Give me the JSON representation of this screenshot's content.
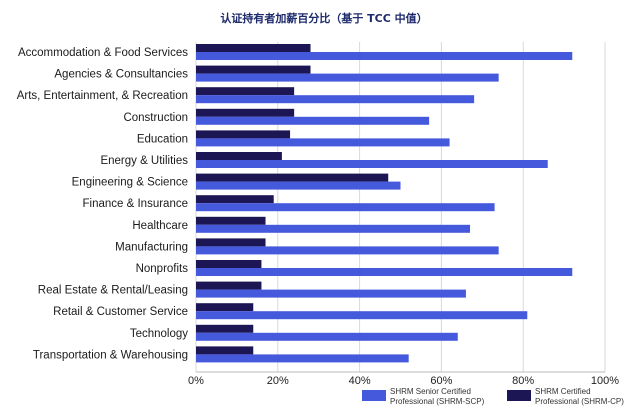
{
  "chart_data": {
    "type": "bar",
    "orientation": "horizontal",
    "title": "认证持有者加薪百分比（基于 TCC 中值）",
    "categories": [
      "Accommodation & Food Services",
      "Agencies & Consultancies",
      "Arts, Entertainment, & Recreation",
      "Construction",
      "Education",
      "Energy & Utilities",
      "Engineering & Science",
      "Finance & Insurance",
      "Healthcare",
      "Manufacturing",
      "Nonprofits",
      "Real Estate & Rental/Leasing",
      "Retail & Customer Service",
      "Technology",
      "Transportation & Warehousing"
    ],
    "series": [
      {
        "name": "SHRM Certified Professional (SHRM-CP)",
        "color": "#1c1655",
        "values": [
          28,
          28,
          24,
          24,
          23,
          21,
          47,
          19,
          17,
          17,
          16,
          16,
          14,
          14,
          14
        ]
      },
      {
        "name": "SHRM Senior Certified Professional (SHRM-SCP)",
        "color": "#4559dd",
        "values": [
          92,
          74,
          68,
          57,
          62,
          86,
          50,
          73,
          67,
          74,
          92,
          66,
          81,
          64,
          52
        ]
      }
    ],
    "xlim": [
      0,
      100
    ],
    "xticks": [
      "0%",
      "20%",
      "40%",
      "60%",
      "80%",
      "100%"
    ],
    "grid": true,
    "legend": {
      "position": "bottom-right",
      "items": [
        {
          "line1": "SHRM Senior Certified",
          "line2": "Professional (SHRM-SCP)",
          "color": "#4559dd"
        },
        {
          "line1": "SHRM Certified",
          "line2": "Professional (SHRM-CP)",
          "color": "#1c1655"
        }
      ]
    }
  }
}
